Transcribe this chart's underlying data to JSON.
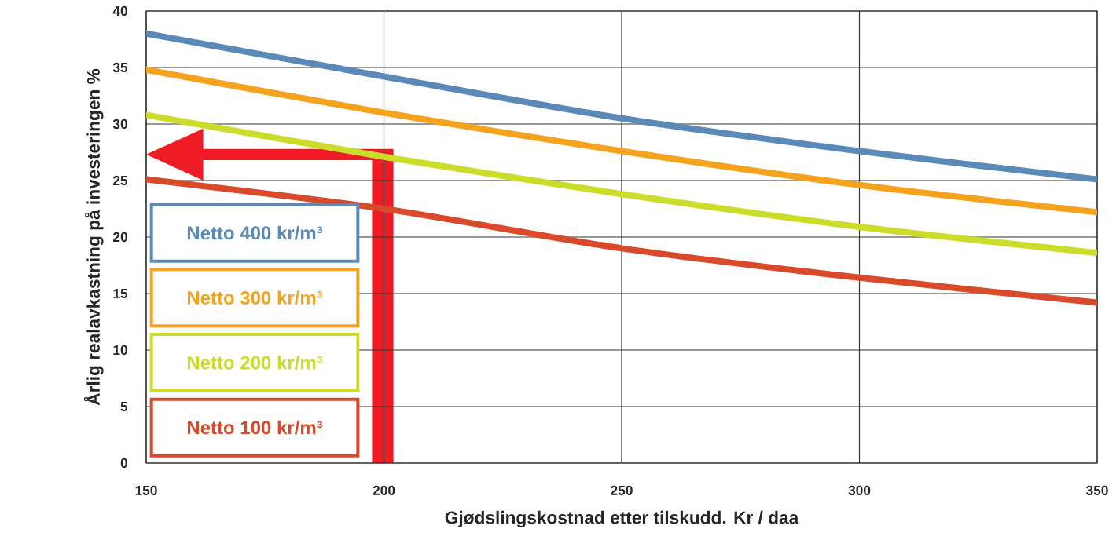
{
  "chart_data": {
    "type": "line",
    "xlabel": "Gjødslingskostnad etter tilskudd. Kr / daa",
    "ylabel": "Årlig realavkastning på investeringen %",
    "x": [
      150,
      200,
      250,
      300,
      350
    ],
    "series": [
      {
        "name": "Netto 400 kr/m³",
        "color": "#5b8ab8",
        "values": [
          38.0,
          34.2,
          30.5,
          27.6,
          25.1
        ]
      },
      {
        "name": "Netto 300 kr/m³",
        "color": "#f5a21f",
        "values": [
          34.8,
          31.0,
          27.6,
          24.6,
          22.2
        ]
      },
      {
        "name": "Netto 200 kr/m³",
        "color": "#cbdc2a",
        "values": [
          30.8,
          27.1,
          23.8,
          20.9,
          18.6
        ]
      },
      {
        "name": "Netto 100 kr/m³",
        "color": "#d94a2a",
        "values": [
          25.1,
          22.5,
          19.0,
          16.4,
          14.2
        ]
      }
    ],
    "xlim": [
      150,
      350
    ],
    "ylim": [
      0,
      40
    ],
    "xticks": [
      150,
      200,
      250,
      300,
      350
    ],
    "yticks": [
      0,
      5,
      10,
      15,
      20,
      25,
      30,
      35,
      40
    ],
    "grid": true,
    "legend": "bottom left",
    "marker": "none",
    "line_style": "solid"
  }
}
